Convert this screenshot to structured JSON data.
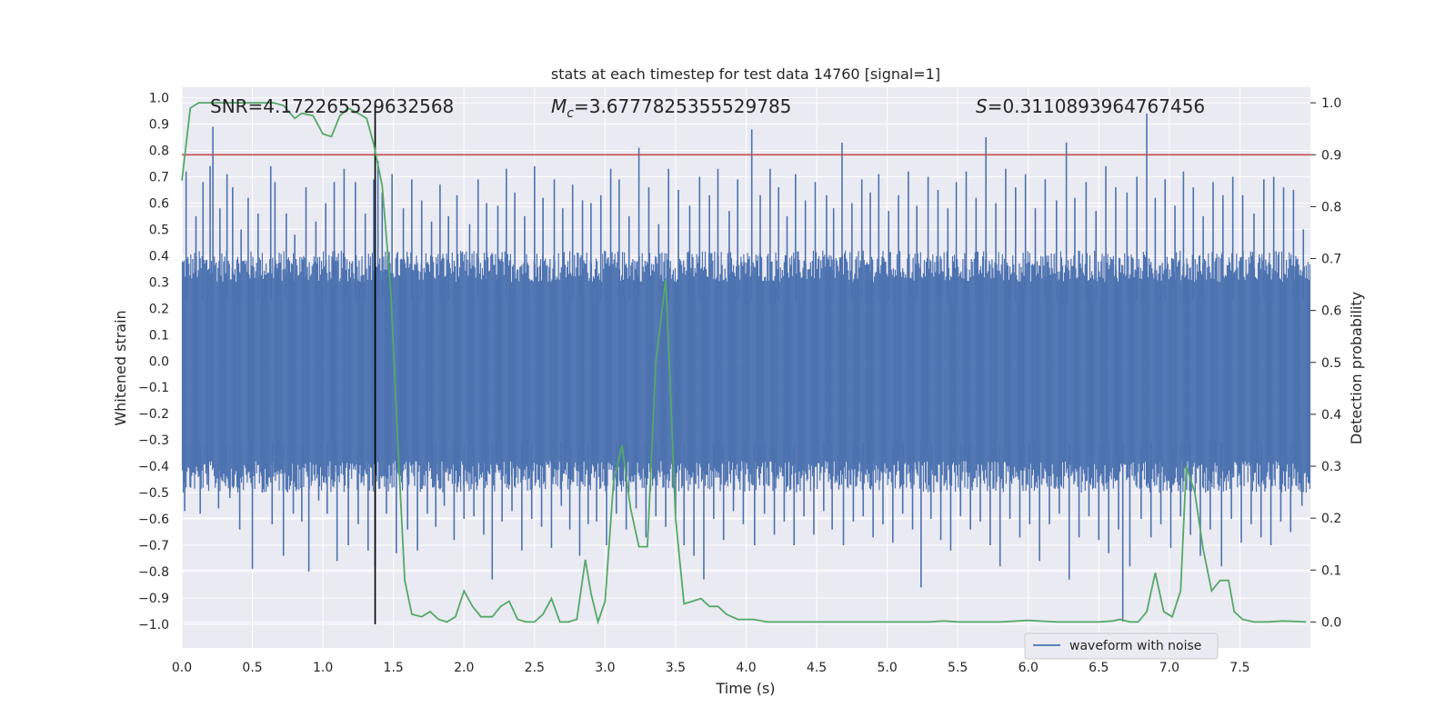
{
  "chart_data": {
    "type": "line",
    "title": "stats at each timestep for test data 14760 [signal=1]",
    "xlabel": "Time (s)",
    "ylabel": "Whitened strain",
    "y2label": "Detection probability",
    "xlim": [
      0.0,
      8.0
    ],
    "ylim": [
      -1.09,
      1.04
    ],
    "y2lim": [
      -0.05,
      1.03
    ],
    "xticks": [
      "0.0",
      "0.5",
      "1.0",
      "1.5",
      "2.0",
      "2.5",
      "3.0",
      "3.5",
      "4.0",
      "4.5",
      "5.0",
      "5.5",
      "6.0",
      "6.5",
      "7.0",
      "7.5"
    ],
    "yticks": [
      "1.0",
      "0.9",
      "0.8",
      "0.7",
      "0.6",
      "0.5",
      "0.4",
      "0.3",
      "0.2",
      "0.1",
      "0.0",
      "-0.1",
      "-0.2",
      "-0.3",
      "-0.4",
      "-0.5",
      "-0.6",
      "-0.7",
      "-0.8",
      "-0.9",
      "-1.0"
    ],
    "y2ticks": [
      "1.0",
      "0.9",
      "0.8",
      "0.7",
      "0.6",
      "0.5",
      "0.4",
      "0.3",
      "0.2",
      "0.1",
      "0.0"
    ],
    "annotations": {
      "snr": "SNR=4.172265529632568",
      "mc_symbol": "M",
      "mc_sub": "c",
      "mc_value": "=3.6777825355529785",
      "s_symbol": "S",
      "s_value": "=0.3110893964767456"
    },
    "threshold_line": {
      "value": 0.9,
      "axis": "right",
      "color": "#c44e52"
    },
    "vertical_marker": {
      "x": 1.37,
      "color": "#000000"
    },
    "legend": {
      "label": "waveform with noise",
      "placement": "lower-right"
    },
    "series": [
      {
        "name": "waveform with noise",
        "axis": "left",
        "color": "#4c72b0",
        "band": {
          "upper": 0.33,
          "lower": -0.41
        },
        "spikes": [
          [
            0.03,
            0.72
          ],
          [
            0.1,
            0.55
          ],
          [
            0.15,
            0.68
          ],
          [
            0.2,
            0.74
          ],
          [
            0.22,
            0.89
          ],
          [
            0.27,
            0.58
          ],
          [
            0.32,
            0.71
          ],
          [
            0.36,
            0.66
          ],
          [
            0.42,
            0.5
          ],
          [
            0.47,
            0.62
          ],
          [
            0.54,
            0.56
          ],
          [
            0.63,
            0.74
          ],
          [
            0.66,
            0.68
          ],
          [
            0.74,
            0.56
          ],
          [
            0.8,
            0.48
          ],
          [
            0.88,
            0.66
          ],
          [
            0.95,
            0.53
          ],
          [
            1.02,
            0.6
          ],
          [
            1.08,
            0.68
          ],
          [
            1.15,
            0.73
          ],
          [
            1.23,
            0.68
          ],
          [
            1.3,
            0.56
          ],
          [
            1.36,
            0.69
          ],
          [
            1.39,
            0.76
          ],
          [
            1.42,
            0.64
          ],
          [
            1.49,
            0.71
          ],
          [
            1.57,
            0.58
          ],
          [
            1.63,
            0.69
          ],
          [
            1.7,
            0.61
          ],
          [
            1.77,
            0.53
          ],
          [
            1.83,
            0.67
          ],
          [
            1.89,
            0.55
          ],
          [
            1.95,
            0.63
          ],
          [
            2.04,
            0.52
          ],
          [
            2.1,
            0.69
          ],
          [
            2.16,
            0.6
          ],
          [
            2.24,
            0.59
          ],
          [
            2.3,
            0.73
          ],
          [
            2.36,
            0.64
          ],
          [
            2.43,
            0.55
          ],
          [
            2.5,
            0.74
          ],
          [
            2.56,
            0.62
          ],
          [
            2.64,
            0.69
          ],
          [
            2.7,
            0.58
          ],
          [
            2.77,
            0.67
          ],
          [
            2.84,
            0.61
          ],
          [
            2.9,
            0.6
          ],
          [
            2.97,
            0.63
          ],
          [
            3.04,
            0.73
          ],
          [
            3.1,
            0.69
          ],
          [
            3.17,
            0.55
          ],
          [
            3.24,
            0.81
          ],
          [
            3.31,
            0.66
          ],
          [
            3.38,
            0.52
          ],
          [
            3.45,
            0.73
          ],
          [
            3.52,
            0.65
          ],
          [
            3.6,
            0.59
          ],
          [
            3.67,
            0.7
          ],
          [
            3.74,
            0.63
          ],
          [
            3.8,
            0.73
          ],
          [
            3.88,
            0.57
          ],
          [
            3.94,
            0.69
          ],
          [
            4.04,
            0.88
          ],
          [
            4.1,
            0.63
          ],
          [
            4.17,
            0.73
          ],
          [
            4.23,
            0.66
          ],
          [
            4.29,
            0.55
          ],
          [
            4.35,
            0.71
          ],
          [
            4.42,
            0.61
          ],
          [
            4.49,
            0.68
          ],
          [
            4.57,
            0.63
          ],
          [
            4.62,
            0.58
          ],
          [
            4.68,
            0.83
          ],
          [
            4.75,
            0.6
          ],
          [
            4.82,
            0.69
          ],
          [
            4.88,
            0.64
          ],
          [
            4.94,
            0.71
          ],
          [
            5.01,
            0.57
          ],
          [
            5.08,
            0.63
          ],
          [
            5.15,
            0.72
          ],
          [
            5.21,
            0.59
          ],
          [
            5.29,
            0.7
          ],
          [
            5.36,
            0.65
          ],
          [
            5.43,
            0.58
          ],
          [
            5.49,
            0.68
          ],
          [
            5.56,
            0.72
          ],
          [
            5.63,
            0.62
          ],
          [
            5.7,
            0.85
          ],
          [
            5.77,
            0.6
          ],
          [
            5.84,
            0.73
          ],
          [
            5.91,
            0.66
          ],
          [
            5.98,
            0.71
          ],
          [
            6.05,
            0.58
          ],
          [
            6.12,
            0.69
          ],
          [
            6.2,
            0.61
          ],
          [
            6.27,
            0.83
          ],
          [
            6.33,
            0.62
          ],
          [
            6.41,
            0.68
          ],
          [
            6.48,
            0.57
          ],
          [
            6.55,
            0.74
          ],
          [
            6.62,
            0.66
          ],
          [
            6.7,
            0.64
          ],
          [
            6.77,
            0.7
          ],
          [
            6.84,
            0.94
          ],
          [
            6.9,
            0.62
          ],
          [
            6.97,
            0.69
          ],
          [
            7.04,
            0.59
          ],
          [
            7.1,
            0.72
          ],
          [
            7.17,
            0.66
          ],
          [
            7.24,
            0.55
          ],
          [
            7.31,
            0.68
          ],
          [
            7.38,
            0.63
          ],
          [
            7.45,
            0.7
          ],
          [
            7.52,
            0.63
          ],
          [
            7.6,
            0.56
          ],
          [
            7.67,
            0.69
          ],
          [
            7.74,
            0.7
          ],
          [
            7.81,
            0.66
          ],
          [
            7.88,
            0.65
          ],
          [
            7.95,
            0.5
          ],
          [
            0.02,
            -0.57
          ],
          [
            0.06,
            -0.48
          ],
          [
            0.13,
            -0.58
          ],
          [
            0.18,
            -0.47
          ],
          [
            0.26,
            -0.56
          ],
          [
            0.34,
            -0.52
          ],
          [
            0.41,
            -0.64
          ],
          [
            0.5,
            -0.79
          ],
          [
            0.57,
            -0.5
          ],
          [
            0.64,
            -0.62
          ],
          [
            0.72,
            -0.74
          ],
          [
            0.79,
            -0.58
          ],
          [
            0.85,
            -0.61
          ],
          [
            0.9,
            -0.8
          ],
          [
            0.97,
            -0.53
          ],
          [
            1.03,
            -0.58
          ],
          [
            1.1,
            -0.76
          ],
          [
            1.18,
            -0.7
          ],
          [
            1.25,
            -0.62
          ],
          [
            1.32,
            -0.72
          ],
          [
            1.37,
            -0.78
          ],
          [
            1.45,
            -0.58
          ],
          [
            1.52,
            -0.73
          ],
          [
            1.6,
            -0.64
          ],
          [
            1.67,
            -0.72
          ],
          [
            1.74,
            -0.58
          ],
          [
            1.8,
            -0.63
          ],
          [
            1.86,
            -0.55
          ],
          [
            1.93,
            -0.68
          ],
          [
            2.0,
            -0.6
          ],
          [
            2.07,
            -0.59
          ],
          [
            2.14,
            -0.66
          ],
          [
            2.2,
            -0.83
          ],
          [
            2.27,
            -0.61
          ],
          [
            2.34,
            -0.57
          ],
          [
            2.41,
            -0.72
          ],
          [
            2.48,
            -0.6
          ],
          [
            2.55,
            -0.63
          ],
          [
            2.62,
            -0.71
          ],
          [
            2.69,
            -0.55
          ],
          [
            2.75,
            -0.64
          ],
          [
            2.82,
            -0.74
          ],
          [
            2.88,
            -0.62
          ],
          [
            2.94,
            -0.61
          ],
          [
            3.01,
            -0.7
          ],
          [
            3.08,
            -0.58
          ],
          [
            3.15,
            -0.64
          ],
          [
            3.22,
            -0.56
          ],
          [
            3.29,
            -0.67
          ],
          [
            3.36,
            -0.59
          ],
          [
            3.43,
            -0.63
          ],
          [
            3.5,
            -0.58
          ],
          [
            3.56,
            -0.7
          ],
          [
            3.63,
            -0.74
          ],
          [
            3.7,
            -0.83
          ],
          [
            3.77,
            -0.6
          ],
          [
            3.84,
            -0.68
          ],
          [
            3.91,
            -0.57
          ],
          [
            3.98,
            -0.62
          ],
          [
            4.06,
            -0.7
          ],
          [
            4.13,
            -0.58
          ],
          [
            4.2,
            -0.66
          ],
          [
            4.27,
            -0.61
          ],
          [
            4.34,
            -0.7
          ],
          [
            4.41,
            -0.59
          ],
          [
            4.48,
            -0.66
          ],
          [
            4.55,
            -0.57
          ],
          [
            4.61,
            -0.64
          ],
          [
            4.69,
            -0.7
          ],
          [
            4.76,
            -0.61
          ],
          [
            4.83,
            -0.59
          ],
          [
            4.9,
            -0.67
          ],
          [
            4.97,
            -0.62
          ],
          [
            5.04,
            -0.69
          ],
          [
            5.11,
            -0.58
          ],
          [
            5.18,
            -0.64
          ],
          [
            5.24,
            -0.86
          ],
          [
            5.31,
            -0.6
          ],
          [
            5.38,
            -0.68
          ],
          [
            5.45,
            -0.72
          ],
          [
            5.52,
            -0.59
          ],
          [
            5.59,
            -0.64
          ],
          [
            5.66,
            -0.61
          ],
          [
            5.73,
            -0.7
          ],
          [
            5.8,
            -0.78
          ],
          [
            5.87,
            -0.6
          ],
          [
            5.94,
            -0.67
          ],
          [
            6.01,
            -0.62
          ],
          [
            6.08,
            -0.76
          ],
          [
            6.15,
            -0.62
          ],
          [
            6.22,
            -0.58
          ],
          [
            6.29,
            -0.83
          ],
          [
            6.36,
            -0.67
          ],
          [
            6.43,
            -0.59
          ],
          [
            6.5,
            -0.68
          ],
          [
            6.57,
            -0.73
          ],
          [
            6.64,
            -0.64
          ],
          [
            6.67,
            -0.99
          ],
          [
            6.72,
            -0.78
          ],
          [
            6.8,
            -0.6
          ],
          [
            6.87,
            -0.67
          ],
          [
            6.94,
            -0.62
          ],
          [
            7.01,
            -0.71
          ],
          [
            7.08,
            -0.59
          ],
          [
            7.15,
            -0.66
          ],
          [
            7.22,
            -0.74
          ],
          [
            7.29,
            -0.64
          ],
          [
            7.37,
            -0.78
          ],
          [
            7.44,
            -0.6
          ],
          [
            7.51,
            -0.69
          ],
          [
            7.58,
            -0.62
          ],
          [
            7.65,
            -0.67
          ],
          [
            7.72,
            -0.7
          ],
          [
            7.79,
            -0.61
          ],
          [
            7.86,
            -0.65
          ],
          [
            7.94,
            -0.55
          ]
        ]
      },
      {
        "name": "detection probability",
        "axis": "right",
        "color": "#55a868",
        "x": [
          0.0,
          0.06,
          0.12,
          0.2,
          0.3,
          0.4,
          0.5,
          0.55,
          0.65,
          0.72,
          0.8,
          0.85,
          0.93,
          1.0,
          1.06,
          1.12,
          1.18,
          1.25,
          1.31,
          1.36,
          1.42,
          1.48,
          1.53,
          1.58,
          1.63,
          1.7,
          1.76,
          1.82,
          1.88,
          1.94,
          2.0,
          2.06,
          2.12,
          2.2,
          2.26,
          2.32,
          2.38,
          2.44,
          2.5,
          2.56,
          2.62,
          2.68,
          2.74,
          2.8,
          2.86,
          2.9,
          2.95,
          3.0,
          3.06,
          3.12,
          3.18,
          3.24,
          3.3,
          3.36,
          3.43,
          3.5,
          3.56,
          3.62,
          3.68,
          3.74,
          3.8,
          3.86,
          3.94,
          4.05,
          4.15,
          4.3,
          4.5,
          5.0,
          5.3,
          5.4,
          5.5,
          5.8,
          6.0,
          6.2,
          6.5,
          6.6,
          6.65,
          6.72,
          6.78,
          6.84,
          6.9,
          6.96,
          7.02,
          7.08,
          7.12,
          7.18,
          7.24,
          7.3,
          7.36,
          7.42,
          7.46,
          7.52,
          7.6,
          7.7,
          7.8,
          7.9,
          7.97
        ],
        "y": [
          0.85,
          0.99,
          1.0,
          1.0,
          1.0,
          1.0,
          1.0,
          1.0,
          1.0,
          0.995,
          0.97,
          0.98,
          0.975,
          0.94,
          0.935,
          0.975,
          0.99,
          0.98,
          0.97,
          0.92,
          0.84,
          0.64,
          0.35,
          0.08,
          0.015,
          0.01,
          0.02,
          0.005,
          0.0,
          0.01,
          0.06,
          0.03,
          0.01,
          0.01,
          0.03,
          0.04,
          0.005,
          0.0,
          0.0,
          0.015,
          0.045,
          0.0,
          0.0,
          0.005,
          0.12,
          0.055,
          0.0,
          0.04,
          0.27,
          0.34,
          0.22,
          0.145,
          0.145,
          0.5,
          0.66,
          0.2,
          0.035,
          0.04,
          0.045,
          0.03,
          0.03,
          0.015,
          0.005,
          0.005,
          0.0,
          0.0,
          0.0,
          0.0,
          0.0,
          0.002,
          0.0,
          0.0,
          0.003,
          0.0,
          0.0,
          0.002,
          0.005,
          0.0,
          0.0,
          0.02,
          0.095,
          0.02,
          0.01,
          0.06,
          0.3,
          0.25,
          0.14,
          0.06,
          0.08,
          0.08,
          0.02,
          0.005,
          0.0,
          0.0,
          0.002,
          0.001,
          0.0
        ]
      }
    ]
  }
}
